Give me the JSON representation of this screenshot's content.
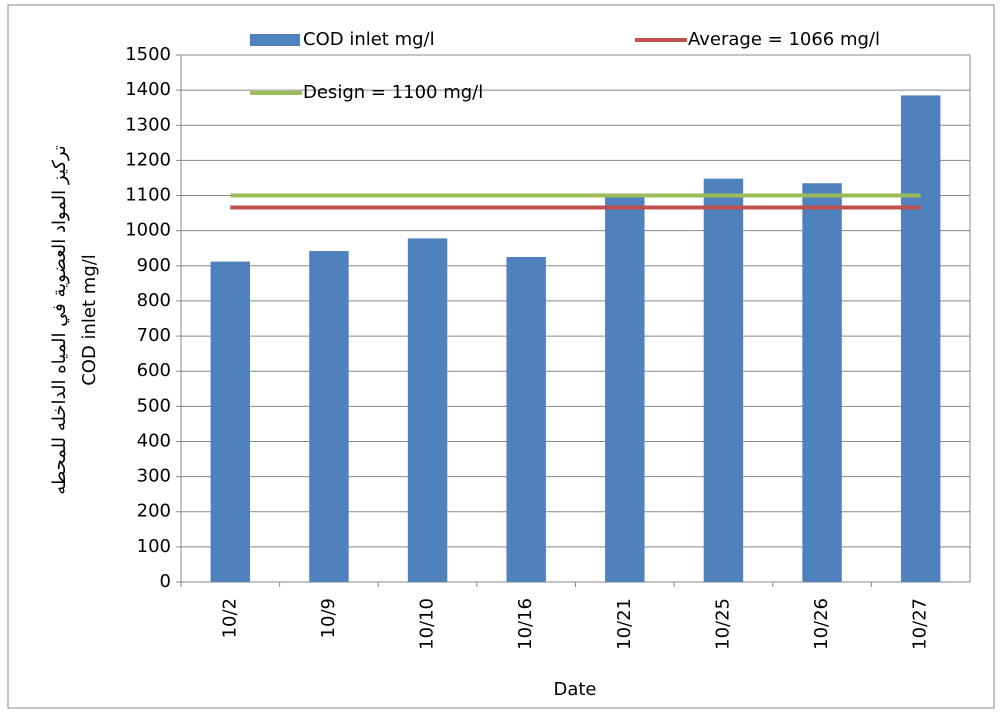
{
  "chart_data": {
    "type": "bar",
    "y_label": [
      "تركيز المواد العضوية في المياه الداخله للمحطه",
      "COD inlet mg/l"
    ],
    "x_label": "Date",
    "categories": [
      "10/2",
      "10/9",
      "10/10",
      "10/16",
      "10/21",
      "10/25",
      "10/26",
      "10/27"
    ],
    "series": [
      {
        "name": "COD inlet mg/l",
        "type": "bar",
        "color": "#4f81bd",
        "values": [
          912,
          942,
          978,
          925,
          1100,
          1148,
          1135,
          1385
        ]
      },
      {
        "name": "Average = 1066 mg/l",
        "type": "line",
        "color": "#c0504d",
        "values": [
          1066,
          1066,
          1066,
          1066,
          1066,
          1066,
          1066,
          1066
        ]
      },
      {
        "name": "Design = 1100 mg/l",
        "type": "line",
        "color": "#9bbb59",
        "values": [
          1100,
          1100,
          1100,
          1100,
          1100,
          1100,
          1100,
          1100
        ]
      }
    ],
    "ylim": [
      0,
      1500
    ],
    "yticks": [
      0,
      100,
      200,
      300,
      400,
      500,
      600,
      700,
      800,
      900,
      1000,
      1100,
      1200,
      1300,
      1400,
      1500
    ],
    "grid": true
  }
}
